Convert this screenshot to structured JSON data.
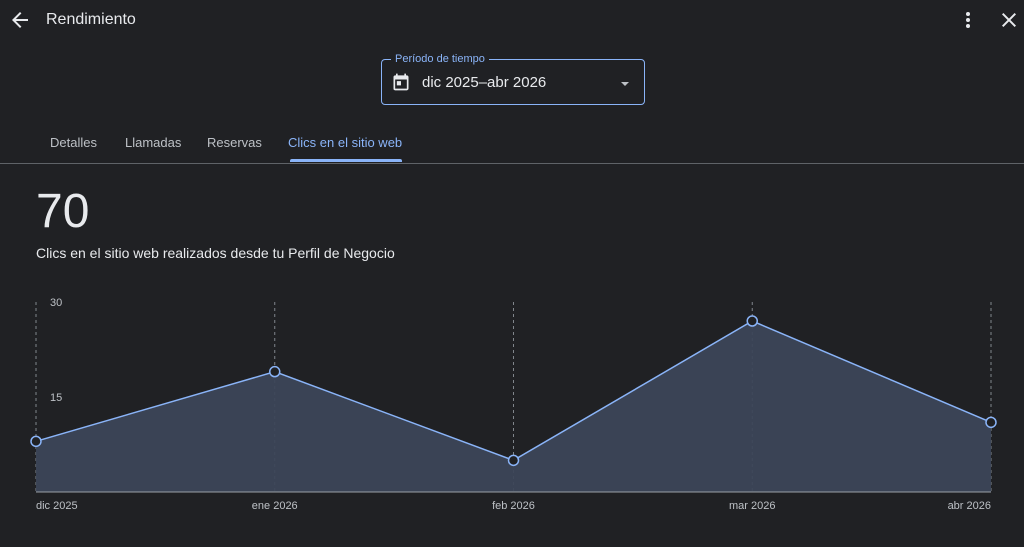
{
  "header": {
    "title": "Rendimiento",
    "back_icon": "arrow-back-icon",
    "more_icon": "more-vert-icon",
    "close_icon": "close-icon"
  },
  "period": {
    "label": "Período de tiempo",
    "value": "dic 2025–abr 2026",
    "icon": "calendar-icon"
  },
  "tabs": [
    {
      "label": "Detalles",
      "active": false
    },
    {
      "label": "Llamadas",
      "active": false
    },
    {
      "label": "Reservas",
      "active": false
    },
    {
      "label": "Clics en el sitio web",
      "active": true
    }
  ],
  "summary": {
    "total": "70",
    "description": "Clics en el sitio web realizados desde tu Perfil de Negocio"
  },
  "colors": {
    "accent": "#8ab4f8",
    "background": "#202124",
    "area_fill": "#3c4658"
  },
  "chart_data": {
    "type": "area",
    "categories": [
      "dic 2025",
      "ene 2026",
      "feb 2026",
      "mar 2026",
      "abr 2026"
    ],
    "values": [
      8,
      19,
      5,
      27,
      11
    ],
    "y_ticks": [
      "15",
      "30"
    ],
    "ylim": [
      0,
      30
    ],
    "grid": "vertical dashed"
  }
}
